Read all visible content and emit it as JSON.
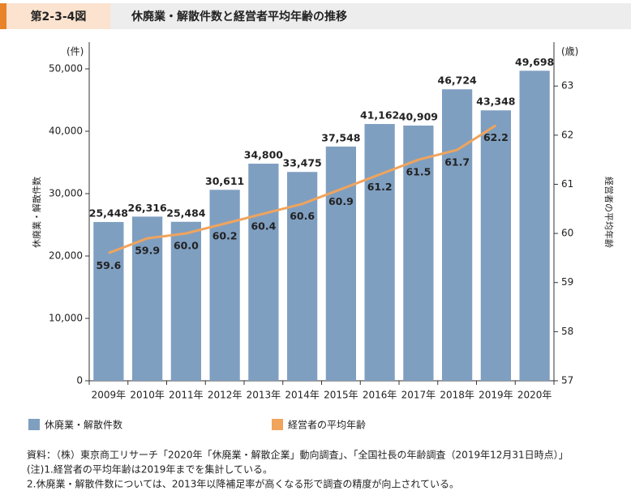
{
  "figure_label": "第2-3-4図",
  "chart_data": {
    "type": "bar",
    "title": "休廃業・解散件数と経営者平均年齢の推移",
    "yunit": "(件)",
    "y2unit": "(歳)",
    "ylabel": "休廃業・解散件数",
    "y2label": "経営者の平均年齢",
    "categories": [
      "2009年",
      "2010年",
      "2011年",
      "2012年",
      "2013年",
      "2014年",
      "2015年",
      "2016年",
      "2017年",
      "2018年",
      "2019年",
      "2020年"
    ],
    "series": [
      {
        "name": "休廃業・解散件数",
        "color": "#7f9fc1",
        "type": "bar",
        "values": [
          25448,
          26316,
          25484,
          30611,
          34800,
          33475,
          37548,
          41162,
          40909,
          46724,
          43348,
          49698
        ],
        "value_labels": [
          "25,448",
          "26,316",
          "25,484",
          "30,611",
          "34,800",
          "33,475",
          "37,548",
          "41,162",
          "40,909",
          "46,724",
          "43,348",
          "49,698"
        ]
      },
      {
        "name": "経営者の平均年齢",
        "color": "#f0a45c",
        "type": "line",
        "axis": "y2",
        "values": [
          59.6,
          59.9,
          60.0,
          60.2,
          60.4,
          60.6,
          60.9,
          61.2,
          61.5,
          61.7,
          62.2,
          null
        ],
        "value_labels": [
          "59.6",
          "59.9",
          "60.0",
          "60.2",
          "60.4",
          "60.6",
          "60.9",
          "61.2",
          "61.5",
          "61.7",
          "62.2",
          null
        ]
      }
    ],
    "ylim": [
      0,
      50000
    ],
    "yticks": [
      0,
      {
        "value": 10000,
        "label": "10,000"
      },
      {
        "value": 20000,
        "label": "20,000"
      },
      {
        "value": 30000,
        "label": "30,000"
      },
      {
        "value": 40000,
        "label": "40,000"
      },
      {
        "value": 50000,
        "label": "50,000"
      }
    ],
    "y2lim": [
      57,
      63.35
    ],
    "y2ticks": [
      57,
      58,
      59,
      60,
      61,
      62,
      63
    ]
  },
  "notes": [
    "資料：（株）東京商工リサーチ「2020年「休廃業・解散企業」動向調査」、「全国社長の年齢調査（2019年12月31日時点）」",
    "(注)1.経営者の平均年齢は2019年までを集計している。",
    "2.休廃業・解散件数については、2013年以降補足率が高くなる形で調査の精度が向上されている。"
  ]
}
